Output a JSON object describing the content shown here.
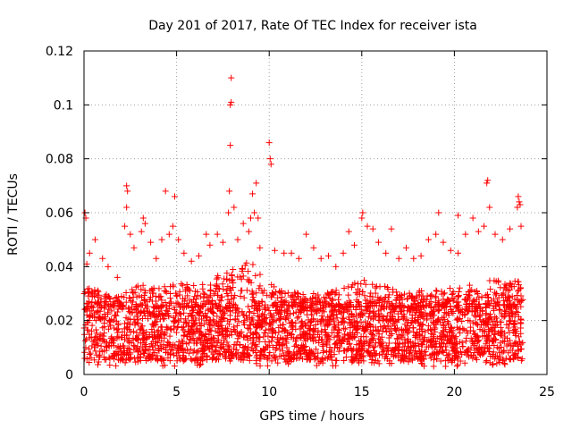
{
  "chart_data": {
    "type": "scatter",
    "title": "Day 201 of 2017, Rate Of TEC Index for receiver ista",
    "xlabel": "GPS time / hours",
    "ylabel": "ROTI / TECUs",
    "xlim": [
      0,
      25
    ],
    "ylim": [
      0,
      0.12
    ],
    "x_ticks": [
      0,
      5,
      10,
      15,
      20,
      25
    ],
    "x_tick_labels": [
      "0",
      "5",
      "10",
      "15",
      "20",
      "25"
    ],
    "y_ticks": [
      0,
      0.02,
      0.04,
      0.06,
      0.08,
      0.1,
      0.12
    ],
    "y_tick_labels": [
      "0",
      "0.02",
      "0.04",
      "0.06",
      "0.08",
      "0.1",
      "0.12"
    ],
    "grid": true,
    "marker": "+",
    "marker_color": "#ff0000",
    "series": [
      {
        "name": "ROTI",
        "points": [
          {
            "x": 0.05,
            "y": 0.06
          },
          {
            "x": 0.1,
            "y": 0.058
          },
          {
            "x": 0.15,
            "y": 0.041
          },
          {
            "x": 0.3,
            "y": 0.045
          },
          {
            "x": 0.6,
            "y": 0.05
          },
          {
            "x": 1.0,
            "y": 0.043
          },
          {
            "x": 1.3,
            "y": 0.04
          },
          {
            "x": 1.8,
            "y": 0.036
          },
          {
            "x": 2.2,
            "y": 0.055
          },
          {
            "x": 2.3,
            "y": 0.062
          },
          {
            "x": 2.3,
            "y": 0.07
          },
          {
            "x": 2.35,
            "y": 0.068
          },
          {
            "x": 2.5,
            "y": 0.052
          },
          {
            "x": 2.7,
            "y": 0.047
          },
          {
            "x": 3.1,
            "y": 0.053
          },
          {
            "x": 3.2,
            "y": 0.058
          },
          {
            "x": 3.3,
            "y": 0.056
          },
          {
            "x": 3.6,
            "y": 0.049
          },
          {
            "x": 3.9,
            "y": 0.043
          },
          {
            "x": 4.2,
            "y": 0.05
          },
          {
            "x": 4.4,
            "y": 0.068
          },
          {
            "x": 4.6,
            "y": 0.052
          },
          {
            "x": 4.8,
            "y": 0.055
          },
          {
            "x": 4.9,
            "y": 0.066
          },
          {
            "x": 5.1,
            "y": 0.05
          },
          {
            "x": 5.4,
            "y": 0.045
          },
          {
            "x": 5.8,
            "y": 0.042
          },
          {
            "x": 6.2,
            "y": 0.044
          },
          {
            "x": 6.6,
            "y": 0.052
          },
          {
            "x": 6.8,
            "y": 0.048
          },
          {
            "x": 7.2,
            "y": 0.052
          },
          {
            "x": 7.5,
            "y": 0.049
          },
          {
            "x": 7.8,
            "y": 0.06
          },
          {
            "x": 7.85,
            "y": 0.068
          },
          {
            "x": 7.9,
            "y": 0.085
          },
          {
            "x": 7.9,
            "y": 0.1
          },
          {
            "x": 7.95,
            "y": 0.101
          },
          {
            "x": 7.95,
            "y": 0.11
          },
          {
            "x": 8.1,
            "y": 0.062
          },
          {
            "x": 8.3,
            "y": 0.05
          },
          {
            "x": 8.6,
            "y": 0.056
          },
          {
            "x": 8.9,
            "y": 0.053
          },
          {
            "x": 9.0,
            "y": 0.058
          },
          {
            "x": 9.1,
            "y": 0.067
          },
          {
            "x": 9.2,
            "y": 0.06
          },
          {
            "x": 9.3,
            "y": 0.071
          },
          {
            "x": 9.4,
            "y": 0.058
          },
          {
            "x": 9.5,
            "y": 0.047
          },
          {
            "x": 10.0,
            "y": 0.086
          },
          {
            "x": 10.05,
            "y": 0.08
          },
          {
            "x": 10.1,
            "y": 0.078
          },
          {
            "x": 10.3,
            "y": 0.046
          },
          {
            "x": 10.8,
            "y": 0.045
          },
          {
            "x": 11.2,
            "y": 0.045
          },
          {
            "x": 11.6,
            "y": 0.043
          },
          {
            "x": 12.0,
            "y": 0.052
          },
          {
            "x": 12.4,
            "y": 0.047
          },
          {
            "x": 12.8,
            "y": 0.043
          },
          {
            "x": 13.2,
            "y": 0.044
          },
          {
            "x": 13.6,
            "y": 0.04
          },
          {
            "x": 14.0,
            "y": 0.045
          },
          {
            "x": 14.3,
            "y": 0.053
          },
          {
            "x": 14.6,
            "y": 0.048
          },
          {
            "x": 15.0,
            "y": 0.058
          },
          {
            "x": 15.05,
            "y": 0.06
          },
          {
            "x": 15.3,
            "y": 0.055
          },
          {
            "x": 15.6,
            "y": 0.054
          },
          {
            "x": 15.9,
            "y": 0.049
          },
          {
            "x": 16.3,
            "y": 0.045
          },
          {
            "x": 16.6,
            "y": 0.054
          },
          {
            "x": 17.0,
            "y": 0.043
          },
          {
            "x": 17.4,
            "y": 0.047
          },
          {
            "x": 17.8,
            "y": 0.043
          },
          {
            "x": 18.2,
            "y": 0.044
          },
          {
            "x": 18.6,
            "y": 0.05
          },
          {
            "x": 19.0,
            "y": 0.052
          },
          {
            "x": 19.15,
            "y": 0.06
          },
          {
            "x": 19.4,
            "y": 0.049
          },
          {
            "x": 19.8,
            "y": 0.046
          },
          {
            "x": 20.2,
            "y": 0.045
          },
          {
            "x": 20.2,
            "y": 0.059
          },
          {
            "x": 20.6,
            "y": 0.052
          },
          {
            "x": 21.0,
            "y": 0.058
          },
          {
            "x": 21.3,
            "y": 0.053
          },
          {
            "x": 21.6,
            "y": 0.055
          },
          {
            "x": 21.75,
            "y": 0.071
          },
          {
            "x": 21.8,
            "y": 0.072
          },
          {
            "x": 21.9,
            "y": 0.062
          },
          {
            "x": 22.2,
            "y": 0.052
          },
          {
            "x": 22.6,
            "y": 0.05
          },
          {
            "x": 23.0,
            "y": 0.054
          },
          {
            "x": 23.4,
            "y": 0.062
          },
          {
            "x": 23.45,
            "y": 0.066
          },
          {
            "x": 23.5,
            "y": 0.064
          },
          {
            "x": 23.55,
            "y": 0.063
          },
          {
            "x": 23.6,
            "y": 0.055
          }
        ],
        "dense_band": {
          "x_range": [
            0,
            23.7
          ],
          "typical_range": [
            0.005,
            0.025
          ],
          "upper_envelope": [
            {
              "x": 0,
              "y": 0.035
            },
            {
              "x": 1,
              "y": 0.03
            },
            {
              "x": 2,
              "y": 0.03
            },
            {
              "x": 3,
              "y": 0.034
            },
            {
              "x": 4,
              "y": 0.032
            },
            {
              "x": 5,
              "y": 0.034
            },
            {
              "x": 6,
              "y": 0.033
            },
            {
              "x": 7,
              "y": 0.036
            },
            {
              "x": 8,
              "y": 0.04
            },
            {
              "x": 9,
              "y": 0.042
            },
            {
              "x": 10,
              "y": 0.034
            },
            {
              "x": 11,
              "y": 0.031
            },
            {
              "x": 12,
              "y": 0.03
            },
            {
              "x": 13,
              "y": 0.03
            },
            {
              "x": 14,
              "y": 0.032
            },
            {
              "x": 15,
              "y": 0.036
            },
            {
              "x": 16,
              "y": 0.034
            },
            {
              "x": 17,
              "y": 0.031
            },
            {
              "x": 18,
              "y": 0.031
            },
            {
              "x": 19,
              "y": 0.033
            },
            {
              "x": 20,
              "y": 0.032
            },
            {
              "x": 21,
              "y": 0.034
            },
            {
              "x": 22,
              "y": 0.035
            },
            {
              "x": 23,
              "y": 0.036
            },
            {
              "x": 23.7,
              "y": 0.034
            }
          ]
        }
      }
    ]
  }
}
